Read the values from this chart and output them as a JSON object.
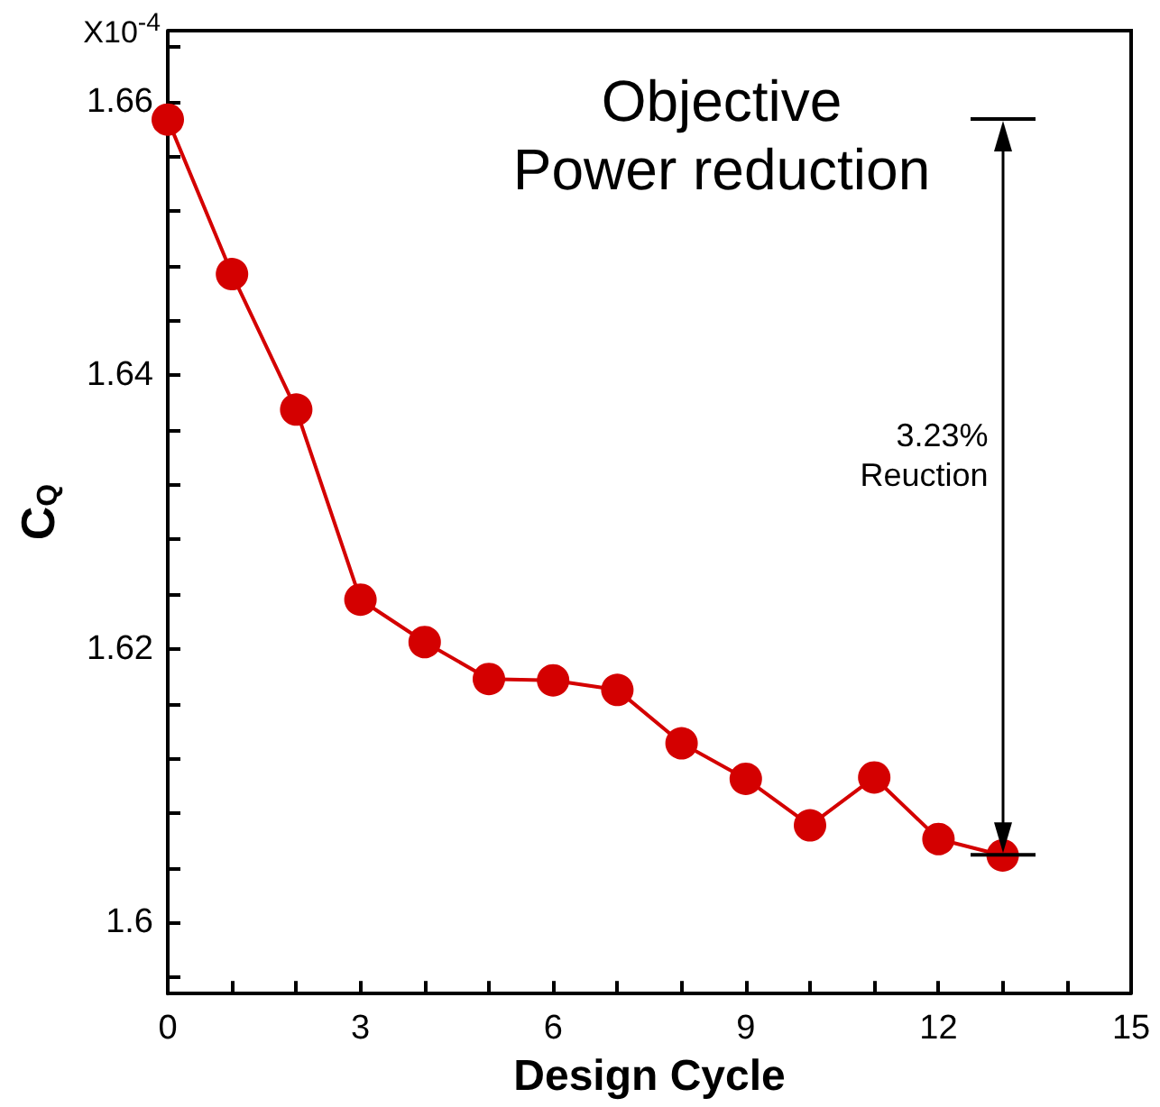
{
  "chart_data": {
    "type": "line",
    "title": "Objective\nPower reduction",
    "xlabel": "Design Cycle",
    "ylabel": "C$_{Q}$",
    "annotations": [
      "X10$^{-4}$",
      "3.23%\nReuction"
    ],
    "x": [
      0,
      1,
      2,
      3,
      4,
      5,
      6,
      7,
      8,
      9,
      10,
      11,
      12,
      13
    ],
    "series": [
      {
        "color": "#d40000",
        "values": [
          1.6587,
          1.6474,
          1.6375,
          1.6236,
          1.6205,
          1.6178,
          1.6177,
          1.617,
          1.6131,
          1.6105,
          1.6071,
          1.6106,
          1.6061,
          1.6049
        ]
      }
    ],
    "xlim": [
      0,
      15
    ],
    "xticks": [
      0,
      {
        "value": 1,
        "label": null
      },
      {
        "value": 2,
        "label": null
      },
      3,
      {
        "value": 4,
        "label": null
      },
      {
        "value": 5,
        "label": null
      },
      6,
      {
        "value": 7,
        "label": null
      },
      {
        "value": 8,
        "label": null
      },
      9,
      {
        "value": 10,
        "label": null
      },
      {
        "value": 11,
        "label": null
      },
      12,
      {
        "value": 13,
        "label": null
      },
      {
        "value": 14,
        "label": null
      },
      15
    ],
    "ylim": [
      1.5948,
      1.6652
    ],
    "yticks": [
      {
        "value": 1.596,
        "label": null
      },
      1.6,
      {
        "value": 1.604,
        "label": null
      },
      {
        "value": 1.608,
        "label": null
      },
      {
        "value": 1.612,
        "label": null
      },
      {
        "value": 1.616,
        "label": null
      },
      1.62,
      {
        "value": 1.624,
        "label": null
      },
      {
        "value": 1.628,
        "label": null
      },
      {
        "value": 1.632,
        "label": null
      },
      {
        "value": 1.636,
        "label": null
      },
      1.64,
      {
        "value": 1.644,
        "label": null
      },
      {
        "value": 1.648,
        "label": null
      },
      {
        "value": 1.652,
        "label": null
      },
      {
        "value": 1.656,
        "label": null
      },
      1.66,
      {
        "value": 1.664,
        "label": null
      }
    ],
    "marker": "circle",
    "line_style": "solid"
  }
}
